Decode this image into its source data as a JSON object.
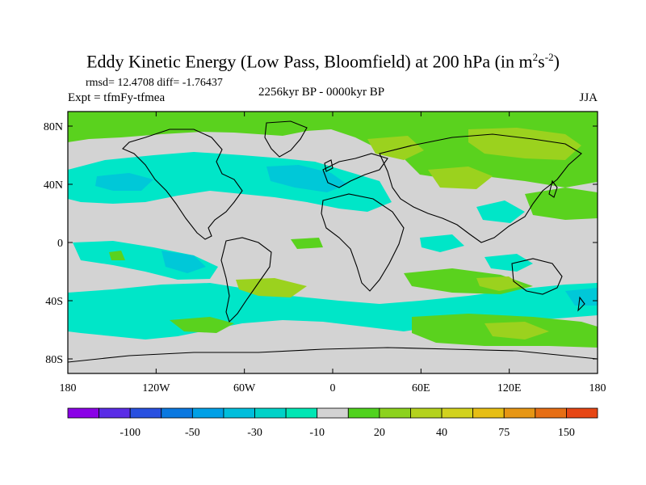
{
  "title": {
    "prefix": "Eddy Kinetic Energy (Low Pass, Bloomfield) at 200 hPa (in m",
    "sup1": "2",
    "mid": "s",
    "sup2": "-2",
    "suffix": ")"
  },
  "stats": "rmsd= 12.4708 diff= -1.76437",
  "expt": "Expt = tfmFy-tfmea",
  "period": "2256kyr BP - 0000kyr BP",
  "season": "JJA",
  "colors": {
    "zero": "#d3d3d3",
    "neg10": "#00e6c8",
    "neg20": "#00c8d8",
    "neg30": "#00a8e8",
    "pos10": "#5ad21e",
    "pos20": "#9bd21e",
    "pos30": "#c8d21e"
  },
  "map": {
    "lon_range": [
      -180,
      180
    ],
    "lat_range": [
      -90,
      90
    ],
    "y_ticks": [
      "80N",
      "40N",
      "0",
      "40S",
      "80S"
    ],
    "x_ticks": [
      "180",
      "120W",
      "60W",
      "0",
      "60E",
      "120E",
      "180"
    ]
  },
  "colorbar": {
    "colors": [
      "#8a00e6",
      "#5a2ce6",
      "#2850e0",
      "#0a78e0",
      "#00a0e6",
      "#00bedc",
      "#00d2c8",
      "#00e6b4",
      "#d3d3d3",
      "#50d21e",
      "#8cd21e",
      "#b4d21e",
      "#d2d21e",
      "#e6be14",
      "#e69614",
      "#e66e14",
      "#e64614"
    ],
    "labels": [
      "-100",
      "-50",
      "-30",
      "-10",
      "20",
      "40",
      "75",
      "150"
    ]
  }
}
